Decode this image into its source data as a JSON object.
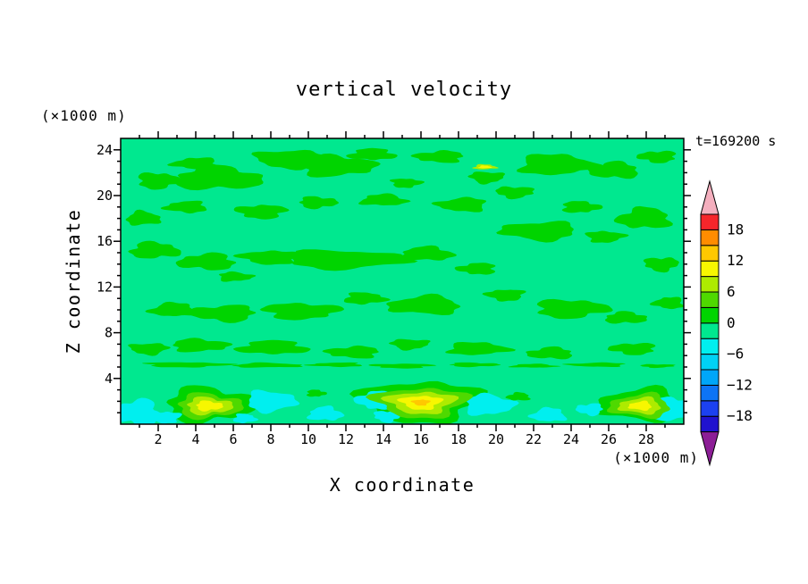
{
  "chart_data": {
    "type": "contour",
    "title": "vertical velocity",
    "timestamp": "t=169200 s",
    "xlabel": "X coordinate",
    "ylabel": "Z coordinate",
    "x_axis_units": "(×1000 m)",
    "y_axis_units": "(×1000 m)",
    "xlim": [
      0,
      30
    ],
    "ylim": [
      0,
      25
    ],
    "x_tick_labels": [
      2,
      4,
      6,
      8,
      10,
      12,
      14,
      16,
      18,
      20,
      22,
      24,
      26,
      28
    ],
    "x_minor_step": 1,
    "y_tick_labels": [
      4,
      8,
      12,
      16,
      20,
      24
    ],
    "y_minor_step": 1,
    "grid": false,
    "legend": "colorbar-right",
    "colorbar": {
      "labels": [
        18,
        12,
        6,
        0,
        -6,
        -12,
        -18
      ],
      "level_min": -21,
      "level_max": 21,
      "level_step": 3,
      "segment_colors_bottom_to_top": [
        "#2012CF",
        "#1C41F0",
        "#0D74F5",
        "#00A6F8",
        "#00D2F5",
        "#00EFEF",
        "#00E88F",
        "#00D400",
        "#4FD900",
        "#AEEB00",
        "#F7F700",
        "#FFC800",
        "#FF8C00",
        "#F5262B"
      ],
      "above_max_color": "#F4AFBE",
      "below_min_color": "#8C1E96"
    },
    "field": {
      "background_color": "#00E88F",
      "background_level_range": "-3 to 0",
      "blobs": [
        {
          "x": 2.0,
          "y": 21.3,
          "rx": 1.1,
          "ry": 0.7,
          "c": "#00D400"
        },
        {
          "x": 5.2,
          "y": 21.5,
          "rx": 2.3,
          "ry": 1.0,
          "c": "#00D400"
        },
        {
          "x": 4.0,
          "y": 22.8,
          "rx": 1.2,
          "ry": 0.5,
          "c": "#00D400"
        },
        {
          "x": 9.0,
          "y": 23.2,
          "rx": 1.8,
          "ry": 0.8,
          "c": "#00D400"
        },
        {
          "x": 11.5,
          "y": 22.6,
          "rx": 2.0,
          "ry": 0.9,
          "c": "#00D400"
        },
        {
          "x": 13.4,
          "y": 23.6,
          "rx": 1.2,
          "ry": 0.5,
          "c": "#00D400"
        },
        {
          "x": 17.0,
          "y": 23.4,
          "rx": 1.3,
          "ry": 0.5,
          "c": "#00D400"
        },
        {
          "x": 19.5,
          "y": 21.6,
          "rx": 0.9,
          "ry": 0.5,
          "c": "#00D400"
        },
        {
          "x": 23.2,
          "y": 22.7,
          "rx": 2.0,
          "ry": 0.9,
          "c": "#00D400"
        },
        {
          "x": 26.3,
          "y": 22.2,
          "rx": 1.3,
          "ry": 0.7,
          "c": "#00D400"
        },
        {
          "x": 28.6,
          "y": 23.4,
          "rx": 1.0,
          "ry": 0.5,
          "c": "#00D400"
        },
        {
          "x": 15.2,
          "y": 21.1,
          "rx": 0.8,
          "ry": 0.4,
          "c": "#00D400"
        },
        {
          "x": 1.2,
          "y": 18.0,
          "rx": 0.9,
          "ry": 0.6,
          "c": "#00D400"
        },
        {
          "x": 3.5,
          "y": 19.0,
          "rx": 1.1,
          "ry": 0.5,
          "c": "#00D400"
        },
        {
          "x": 7.5,
          "y": 18.6,
          "rx": 1.3,
          "ry": 0.6,
          "c": "#00D400"
        },
        {
          "x": 10.5,
          "y": 19.4,
          "rx": 1.0,
          "ry": 0.5,
          "c": "#00D400"
        },
        {
          "x": 14.0,
          "y": 19.6,
          "rx": 1.2,
          "ry": 0.5,
          "c": "#00D400"
        },
        {
          "x": 18.2,
          "y": 19.2,
          "rx": 1.3,
          "ry": 0.6,
          "c": "#00D400"
        },
        {
          "x": 21.0,
          "y": 20.3,
          "rx": 1.0,
          "ry": 0.5,
          "c": "#00D400"
        },
        {
          "x": 24.5,
          "y": 19.0,
          "rx": 1.0,
          "ry": 0.5,
          "c": "#00D400"
        },
        {
          "x": 27.9,
          "y": 18.0,
          "rx": 1.4,
          "ry": 0.9,
          "c": "#00D400"
        },
        {
          "x": 22.3,
          "y": 16.9,
          "rx": 2.0,
          "ry": 0.8,
          "c": "#00D400"
        },
        {
          "x": 25.8,
          "y": 16.4,
          "rx": 1.0,
          "ry": 0.5,
          "c": "#00D400"
        },
        {
          "x": 1.8,
          "y": 15.2,
          "rx": 1.3,
          "ry": 0.7,
          "c": "#00D400"
        },
        {
          "x": 4.6,
          "y": 14.2,
          "rx": 1.5,
          "ry": 0.7,
          "c": "#00D400"
        },
        {
          "x": 8.0,
          "y": 14.6,
          "rx": 1.6,
          "ry": 0.6,
          "c": "#00D400"
        },
        {
          "x": 12.0,
          "y": 14.4,
          "rx": 3.2,
          "ry": 0.8,
          "c": "#00D400"
        },
        {
          "x": 16.3,
          "y": 14.9,
          "rx": 1.4,
          "ry": 0.6,
          "c": "#00D400"
        },
        {
          "x": 19.0,
          "y": 13.6,
          "rx": 1.0,
          "ry": 0.5,
          "c": "#00D400"
        },
        {
          "x": 28.8,
          "y": 14.0,
          "rx": 0.9,
          "ry": 0.6,
          "c": "#00D400"
        },
        {
          "x": 6.1,
          "y": 12.9,
          "rx": 0.9,
          "ry": 0.4,
          "c": "#00D400"
        },
        {
          "x": 2.8,
          "y": 10.0,
          "rx": 1.2,
          "ry": 0.6,
          "c": "#00D400"
        },
        {
          "x": 5.5,
          "y": 9.7,
          "rx": 1.7,
          "ry": 0.7,
          "c": "#00D400"
        },
        {
          "x": 9.6,
          "y": 9.9,
          "rx": 2.0,
          "ry": 0.7,
          "c": "#00D400"
        },
        {
          "x": 13.0,
          "y": 11.0,
          "rx": 1.1,
          "ry": 0.5,
          "c": "#00D400"
        },
        {
          "x": 16.2,
          "y": 10.4,
          "rx": 1.9,
          "ry": 0.8,
          "c": "#00D400"
        },
        {
          "x": 20.5,
          "y": 11.3,
          "rx": 1.0,
          "ry": 0.5,
          "c": "#00D400"
        },
        {
          "x": 24.0,
          "y": 10.1,
          "rx": 1.9,
          "ry": 0.8,
          "c": "#00D400"
        },
        {
          "x": 26.9,
          "y": 9.3,
          "rx": 1.1,
          "ry": 0.5,
          "c": "#00D400"
        },
        {
          "x": 29.2,
          "y": 10.6,
          "rx": 0.8,
          "ry": 0.5,
          "c": "#00D400"
        },
        {
          "x": 1.5,
          "y": 6.6,
          "rx": 1.0,
          "ry": 0.5,
          "c": "#00D400"
        },
        {
          "x": 4.2,
          "y": 6.9,
          "rx": 1.5,
          "ry": 0.55,
          "c": "#00D400"
        },
        {
          "x": 8.1,
          "y": 6.7,
          "rx": 1.8,
          "ry": 0.6,
          "c": "#00D400"
        },
        {
          "x": 12.4,
          "y": 6.3,
          "rx": 1.4,
          "ry": 0.5,
          "c": "#00D400"
        },
        {
          "x": 15.4,
          "y": 7.0,
          "rx": 1.0,
          "ry": 0.45,
          "c": "#00D400"
        },
        {
          "x": 19.0,
          "y": 6.6,
          "rx": 1.6,
          "ry": 0.55,
          "c": "#00D400"
        },
        {
          "x": 22.9,
          "y": 6.2,
          "rx": 1.2,
          "ry": 0.5,
          "c": "#00D400"
        },
        {
          "x": 27.3,
          "y": 6.6,
          "rx": 1.2,
          "ry": 0.5,
          "c": "#00D400"
        },
        {
          "x": 3.5,
          "y": 5.2,
          "rx": 2.2,
          "ry": 0.22,
          "c": "#00D400"
        },
        {
          "x": 7.8,
          "y": 5.15,
          "rx": 1.8,
          "ry": 0.2,
          "c": "#00D400"
        },
        {
          "x": 11.5,
          "y": 5.2,
          "rx": 1.4,
          "ry": 0.18,
          "c": "#00D400"
        },
        {
          "x": 15.0,
          "y": 5.1,
          "rx": 1.6,
          "ry": 0.2,
          "c": "#00D400"
        },
        {
          "x": 18.8,
          "y": 5.2,
          "rx": 1.3,
          "ry": 0.18,
          "c": "#00D400"
        },
        {
          "x": 22.0,
          "y": 5.1,
          "rx": 1.2,
          "ry": 0.16,
          "c": "#00D400"
        },
        {
          "x": 25.4,
          "y": 5.2,
          "rx": 1.5,
          "ry": 0.18,
          "c": "#00D400"
        },
        {
          "x": 28.6,
          "y": 5.1,
          "rx": 0.9,
          "ry": 0.15,
          "c": "#00D400"
        },
        {
          "x": 10.4,
          "y": 2.7,
          "rx": 0.5,
          "ry": 0.3,
          "c": "#00D400"
        },
        {
          "x": 21.2,
          "y": 2.4,
          "rx": 0.6,
          "ry": 0.35,
          "c": "#00D400"
        },
        {
          "x": 4.7,
          "y": 1.7,
          "rx": 2.3,
          "ry": 1.5,
          "c": "#00D400",
          "s": 200
        },
        {
          "x": 16.0,
          "y": 2.0,
          "rx": 3.1,
          "ry": 1.8,
          "c": "#00D400",
          "s": 210
        },
        {
          "x": 27.7,
          "y": 1.7,
          "rx": 2.2,
          "ry": 1.4,
          "c": "#00D400",
          "s": 220
        },
        {
          "x": 0.9,
          "y": 1.0,
          "rx": 1.2,
          "ry": 1.1,
          "c": "#00EFEF"
        },
        {
          "x": 2.4,
          "y": 0.6,
          "rx": 0.8,
          "ry": 0.5,
          "c": "#00EFEF"
        },
        {
          "x": 8.0,
          "y": 2.0,
          "rx": 1.3,
          "ry": 0.9,
          "c": "#00EFEF"
        },
        {
          "x": 10.9,
          "y": 0.9,
          "rx": 0.9,
          "ry": 0.6,
          "c": "#00EFEF"
        },
        {
          "x": 13.6,
          "y": 2.1,
          "rx": 1.0,
          "ry": 0.8,
          "c": "#00EFEF"
        },
        {
          "x": 14.2,
          "y": 0.7,
          "rx": 0.7,
          "ry": 0.5,
          "c": "#00EFEF"
        },
        {
          "x": 19.6,
          "y": 1.7,
          "rx": 1.3,
          "ry": 0.9,
          "c": "#00EFEF"
        },
        {
          "x": 22.8,
          "y": 0.8,
          "rx": 0.9,
          "ry": 0.6,
          "c": "#00EFEF"
        },
        {
          "x": 25.0,
          "y": 1.3,
          "rx": 0.7,
          "ry": 0.5,
          "c": "#00EFEF"
        },
        {
          "x": 29.3,
          "y": 1.4,
          "rx": 1.3,
          "ry": 1.0,
          "c": "#00EFEF"
        },
        {
          "x": 6.6,
          "y": 0.5,
          "rx": 0.6,
          "ry": 0.4,
          "c": "#00EFEF"
        },
        {
          "x": 4.7,
          "y": 1.6,
          "rx": 1.7,
          "ry": 1.05,
          "c": "#4FD900",
          "s": 200
        },
        {
          "x": 4.7,
          "y": 1.6,
          "rx": 1.2,
          "ry": 0.72,
          "c": "#AEEB00",
          "s": 200
        },
        {
          "x": 4.7,
          "y": 1.6,
          "rx": 0.7,
          "ry": 0.42,
          "c": "#F7F700",
          "s": 200
        },
        {
          "x": 16.0,
          "y": 1.9,
          "rx": 2.4,
          "ry": 1.3,
          "c": "#4FD900",
          "s": 210
        },
        {
          "x": 16.0,
          "y": 1.9,
          "rx": 1.75,
          "ry": 0.95,
          "c": "#AEEB00",
          "s": 210
        },
        {
          "x": 16.0,
          "y": 1.9,
          "rx": 1.05,
          "ry": 0.6,
          "c": "#F7F700",
          "s": 210
        },
        {
          "x": 16.0,
          "y": 1.9,
          "rx": 0.45,
          "ry": 0.26,
          "c": "#FFC800",
          "s": 210
        },
        {
          "x": 27.7,
          "y": 1.6,
          "rx": 1.6,
          "ry": 1.0,
          "c": "#4FD900",
          "s": 220
        },
        {
          "x": 27.7,
          "y": 1.6,
          "rx": 1.1,
          "ry": 0.68,
          "c": "#AEEB00",
          "s": 220
        },
        {
          "x": 27.7,
          "y": 1.6,
          "rx": 0.6,
          "ry": 0.38,
          "c": "#F7F700",
          "s": 220
        },
        {
          "x": 19.4,
          "y": 22.5,
          "rx": 0.6,
          "ry": 0.22,
          "c": "#AEEB00",
          "s": 230
        },
        {
          "x": 19.4,
          "y": 22.5,
          "rx": 0.32,
          "ry": 0.12,
          "c": "#F7F700",
          "s": 230
        }
      ]
    }
  }
}
